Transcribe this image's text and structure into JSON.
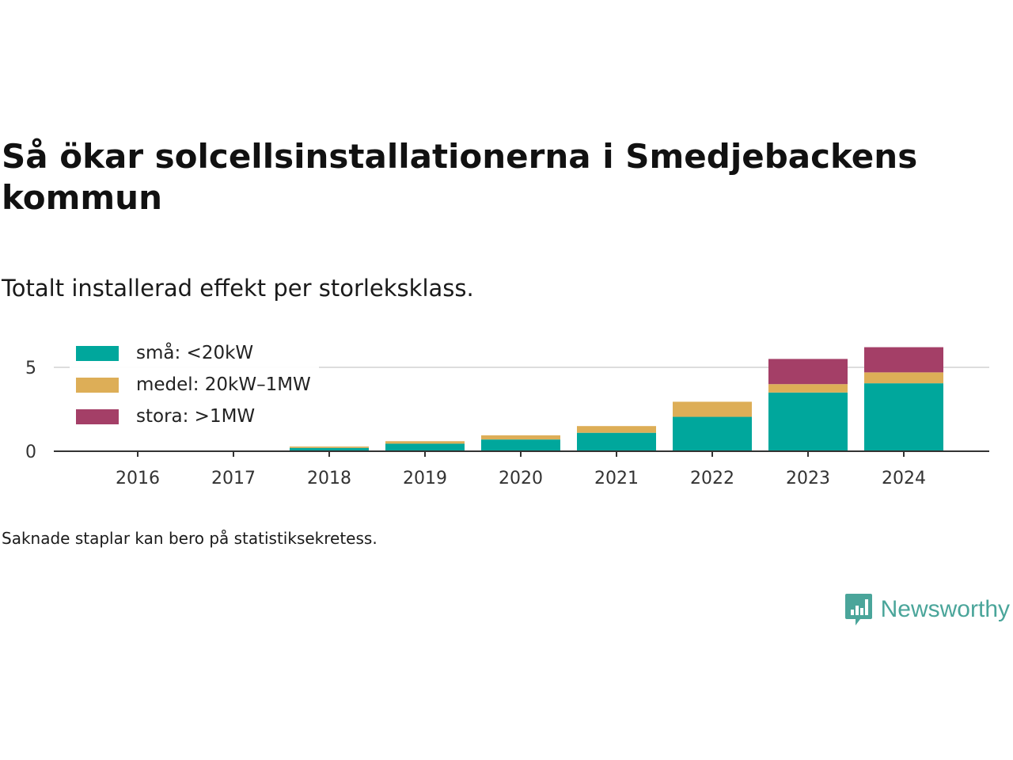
{
  "header": {
    "title": "Så ökar solcellsinstallationerna i Smedjebackens kommun",
    "subtitle": "Totalt installerad effekt per storleksklass."
  },
  "footer": {
    "note": "Saknade staplar kan bero på statistiksekretess.",
    "brand": "Newsworthy"
  },
  "colors": {
    "small": "#00A79C",
    "medium": "#DDAE57",
    "large": "#A43F67",
    "brand": "#4AA59A",
    "grid": "#dddddd",
    "axis": "#333333"
  },
  "chart_data": {
    "type": "bar",
    "stacked": true,
    "categories": [
      "2016",
      "2017",
      "2018",
      "2019",
      "2020",
      "2021",
      "2022",
      "2023",
      "2024"
    ],
    "series": [
      {
        "name": "små: <20kW",
        "color": "#00A79C",
        "values": [
          0,
          0,
          0.2,
          0.45,
          0.7,
          1.1,
          2.05,
          3.5,
          4.05
        ]
      },
      {
        "name": "medel: 20kW–1MW",
        "color": "#DDAE57",
        "values": [
          0,
          0,
          0.08,
          0.15,
          0.25,
          0.4,
          0.9,
          0.5,
          0.65
        ]
      },
      {
        "name": "stora: >1MW",
        "color": "#A43F67",
        "values": [
          0,
          0,
          0,
          0,
          0,
          0,
          0,
          1.5,
          1.5
        ]
      }
    ],
    "yticks": [
      0,
      5
    ],
    "ylim": [
      0,
      6.5
    ],
    "xlabel": "",
    "ylabel": "",
    "grid": true,
    "legend_position": "top-left"
  }
}
